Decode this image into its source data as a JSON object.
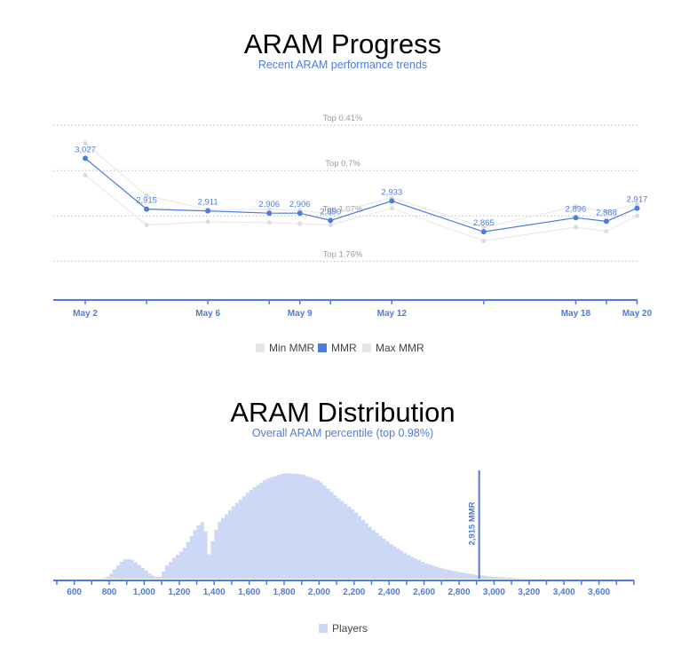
{
  "colors": {
    "accent": "#4d7bde",
    "range_line": "#e6e6e6",
    "range_point": "#dcdcdc",
    "histogram": "#cdd8f6",
    "band": "#bdbdbd"
  },
  "chart_data": [
    {
      "type": "line",
      "title": "ARAM Progress",
      "subtitle": "Recent ARAM performance trends",
      "x_axis": {
        "type": "date",
        "range": [
          "2023-05-01",
          "2023-05-20"
        ],
        "tick_labels": [
          "May 2",
          "May 6",
          "May 9",
          "May 12",
          "May 18",
          "May 20"
        ]
      },
      "y_axis": {
        "range": [
          2740,
          3110
        ],
        "visible": false
      },
      "x": [
        "2023-05-02",
        "2023-05-06",
        "2023-05-08",
        "2023-05-09",
        "2023-05-10",
        "2023-05-12",
        "2023-05-15",
        "2023-05-18",
        "2023-05-19",
        "2023-05-20",
        "2023-05-04"
      ],
      "series": [
        {
          "name": "Min MMR",
          "x": [
            "2023-05-02",
            "2023-05-04",
            "2023-05-06",
            "2023-05-08",
            "2023-05-09",
            "2023-05-10",
            "2023-05-12",
            "2023-05-15",
            "2023-05-18",
            "2023-05-19",
            "2023-05-20"
          ],
          "values": [
            2990,
            2880,
            2887,
            2885,
            2883,
            2880,
            2917,
            2845,
            2875,
            2866,
            2900
          ]
        },
        {
          "name": "MMR",
          "x": [
            "2023-05-02",
            "2023-05-04",
            "2023-05-06",
            "2023-05-08",
            "2023-05-09",
            "2023-05-10",
            "2023-05-12",
            "2023-05-15",
            "2023-05-18",
            "2023-05-19",
            "2023-05-20"
          ],
          "values": [
            3027,
            2915,
            2911,
            2906,
            2906,
            2890,
            2933,
            2865,
            2896,
            2888,
            2917
          ]
        },
        {
          "name": "Max MMR",
          "x": [
            "2023-05-02",
            "2023-05-04",
            "2023-05-06",
            "2023-05-08",
            "2023-05-09",
            "2023-05-10",
            "2023-05-12",
            "2023-05-15",
            "2023-05-18",
            "2023-05-19",
            "2023-05-20"
          ],
          "values": [
            3060,
            2945,
            2914,
            2915,
            2912,
            2905,
            2940,
            2875,
            2921,
            2910,
            2926
          ]
        }
      ],
      "bands": [
        {
          "label": "Top 0.41%",
          "value": 3100
        },
        {
          "label": "Top 0.7%",
          "value": 3000
        },
        {
          "label": "Top 1.07%",
          "value": 2900
        },
        {
          "label": "Top 1.76%",
          "value": 2800
        }
      ],
      "legend": {
        "placement": "bottom-center",
        "items": [
          "Min MMR",
          "MMR",
          "Max MMR"
        ]
      },
      "grid": false
    },
    {
      "type": "bar",
      "title": "ARAM Distribution",
      "subtitle": "Overall ARAM percentile (top 0.98%)",
      "x_axis": {
        "range": [
          480,
          3800
        ],
        "tick_labels": [
          "600",
          "800",
          "1,000",
          "1,200",
          "1,400",
          "1,600",
          "1,800",
          "2,000",
          "2,200",
          "2,400",
          "2,600",
          "2,800",
          "3,000",
          "3,200",
          "3,400",
          "3,600"
        ],
        "tick_values": [
          600,
          800,
          1000,
          1200,
          1400,
          1600,
          1800,
          2000,
          2200,
          2400,
          2600,
          2800,
          3000,
          3200,
          3400,
          3600
        ]
      },
      "y_axis": {
        "range": [
          0,
          115
        ],
        "visible": false
      },
      "bin_width": 20,
      "bins_start": 760,
      "histogram_anchors": [
        [
          760,
          0
        ],
        [
          800,
          3
        ],
        [
          840,
          12
        ],
        [
          880,
          20
        ],
        [
          900,
          21
        ],
        [
          930,
          20
        ],
        [
          960,
          16
        ],
        [
          1000,
          10
        ],
        [
          1040,
          4
        ],
        [
          1080,
          1
        ],
        [
          1100,
          3
        ],
        [
          1120,
          12
        ],
        [
          1180,
          24
        ],
        [
          1220,
          30
        ],
        [
          1260,
          42
        ],
        [
          1300,
          55
        ],
        [
          1330,
          60
        ],
        [
          1350,
          50
        ],
        [
          1370,
          26
        ],
        [
          1390,
          40
        ],
        [
          1420,
          58
        ],
        [
          1500,
          75
        ],
        [
          1600,
          93
        ],
        [
          1700,
          106
        ],
        [
          1800,
          112
        ],
        [
          1900,
          111
        ],
        [
          2000,
          104
        ],
        [
          2100,
          87
        ],
        [
          2200,
          72
        ],
        [
          2300,
          53
        ],
        [
          2400,
          38
        ],
        [
          2500,
          26
        ],
        [
          2600,
          17
        ],
        [
          2700,
          11
        ],
        [
          2800,
          7
        ],
        [
          2900,
          4
        ],
        [
          3000,
          2
        ],
        [
          3100,
          1
        ],
        [
          3200,
          0
        ]
      ],
      "marker": {
        "label": "2,915 MMR",
        "value": 2915
      },
      "legend": {
        "placement": "bottom-center",
        "items": [
          "Players"
        ]
      },
      "grid": false
    }
  ]
}
